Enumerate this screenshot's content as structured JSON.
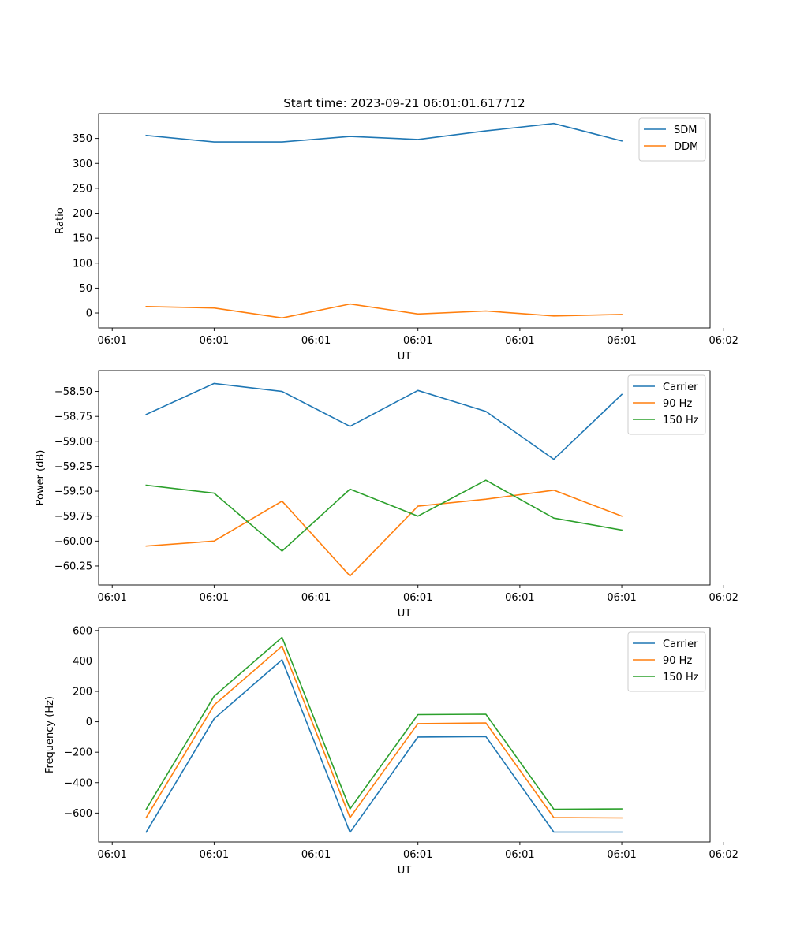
{
  "chart_data": [
    {
      "type": "line",
      "title": "Start time: 2023-09-21 06:01:01.617712",
      "xlabel": "UT",
      "ylabel": "Ratio",
      "x": [
        0.5,
        1.5,
        2.5,
        3.5,
        4.5,
        5.5,
        6.5,
        7.5
      ],
      "xlim": [
        -0.2,
        8.8
      ],
      "x_ticks": [
        0,
        1.5,
        3,
        4.5,
        6,
        7.5,
        9
      ],
      "x_tick_labels": [
        "06:01",
        "06:01",
        "06:01",
        "06:01",
        "06:01",
        "06:01",
        "06:02"
      ],
      "ylim": [
        -30,
        400
      ],
      "y_ticks": [
        0,
        50,
        100,
        150,
        200,
        250,
        300,
        350
      ],
      "y_tick_labels": [
        "0",
        "50",
        "100",
        "150",
        "200",
        "250",
        "300",
        "350"
      ],
      "legend_position": "top-right",
      "grid": false,
      "series": [
        {
          "name": "SDM",
          "color": "#1f77b4",
          "values": [
            356,
            343,
            343,
            354,
            348,
            365,
            380,
            345
          ]
        },
        {
          "name": "DDM",
          "color": "#ff7f0e",
          "values": [
            13,
            10,
            -10,
            18,
            -2,
            4,
            -6,
            -3
          ]
        }
      ]
    },
    {
      "type": "line",
      "title": "",
      "xlabel": "UT",
      "ylabel": "Power (dB)",
      "x": [
        0.5,
        1.5,
        2.5,
        3.5,
        4.5,
        5.5,
        6.5,
        7.5
      ],
      "xlim": [
        -0.2,
        8.8
      ],
      "x_ticks": [
        0,
        1.5,
        3,
        4.5,
        6,
        7.5,
        9
      ],
      "x_tick_labels": [
        "06:01",
        "06:01",
        "06:01",
        "06:01",
        "06:01",
        "06:01",
        "06:02"
      ],
      "ylim": [
        -60.44,
        -58.29
      ],
      "y_ticks": [
        -58.5,
        -58.75,
        -59.0,
        -59.25,
        -59.5,
        -59.75,
        -60.0,
        -60.25
      ],
      "y_tick_labels": [
        "−58.50",
        "−58.75",
        "−59.00",
        "−59.25",
        "−59.50",
        "−59.75",
        "−60.00",
        "−60.25"
      ],
      "legend_position": "top-right",
      "grid": false,
      "series": [
        {
          "name": "Carrier",
          "color": "#1f77b4",
          "values": [
            -58.73,
            -58.42,
            -58.5,
            -58.85,
            -58.49,
            -58.7,
            -59.18,
            -58.53
          ]
        },
        {
          "name": "90 Hz",
          "color": "#ff7f0e",
          "values": [
            -60.05,
            -60.0,
            -59.6,
            -60.35,
            -59.65,
            -59.58,
            -59.49,
            -59.75
          ]
        },
        {
          "name": "150 Hz",
          "color": "#2ca02c",
          "values": [
            -59.44,
            -59.52,
            -60.1,
            -59.48,
            -59.75,
            -59.39,
            -59.77,
            -59.89
          ]
        }
      ]
    },
    {
      "type": "line",
      "title": "",
      "xlabel": "UT",
      "ylabel": "Frequency (Hz)",
      "x": [
        0.5,
        1.5,
        2.5,
        3.5,
        4.5,
        5.5,
        6.5,
        7.5
      ],
      "xlim": [
        -0.2,
        8.8
      ],
      "x_ticks": [
        0,
        1.5,
        3,
        4.5,
        6,
        7.5,
        9
      ],
      "x_tick_labels": [
        "06:01",
        "06:01",
        "06:01",
        "06:01",
        "06:01",
        "06:01",
        "06:02"
      ],
      "ylim": [
        -790,
        620
      ],
      "y_ticks": [
        600,
        400,
        200,
        0,
        -200,
        -400,
        -600
      ],
      "y_tick_labels": [
        "600",
        "400",
        "200",
        "0",
        "−200",
        "−400",
        "−600"
      ],
      "legend_position": "top-right",
      "grid": false,
      "series": [
        {
          "name": "Carrier",
          "color": "#1f77b4",
          "values": [
            -725,
            20,
            408,
            -727,
            -100,
            -97,
            -725,
            -725
          ]
        },
        {
          "name": "90 Hz",
          "color": "#ff7f0e",
          "values": [
            -630,
            110,
            497,
            -630,
            -12,
            -7,
            -630,
            -632
          ]
        },
        {
          "name": "150 Hz",
          "color": "#2ca02c",
          "values": [
            -575,
            168,
            555,
            -573,
            47,
            50,
            -575,
            -573
          ]
        }
      ]
    }
  ]
}
